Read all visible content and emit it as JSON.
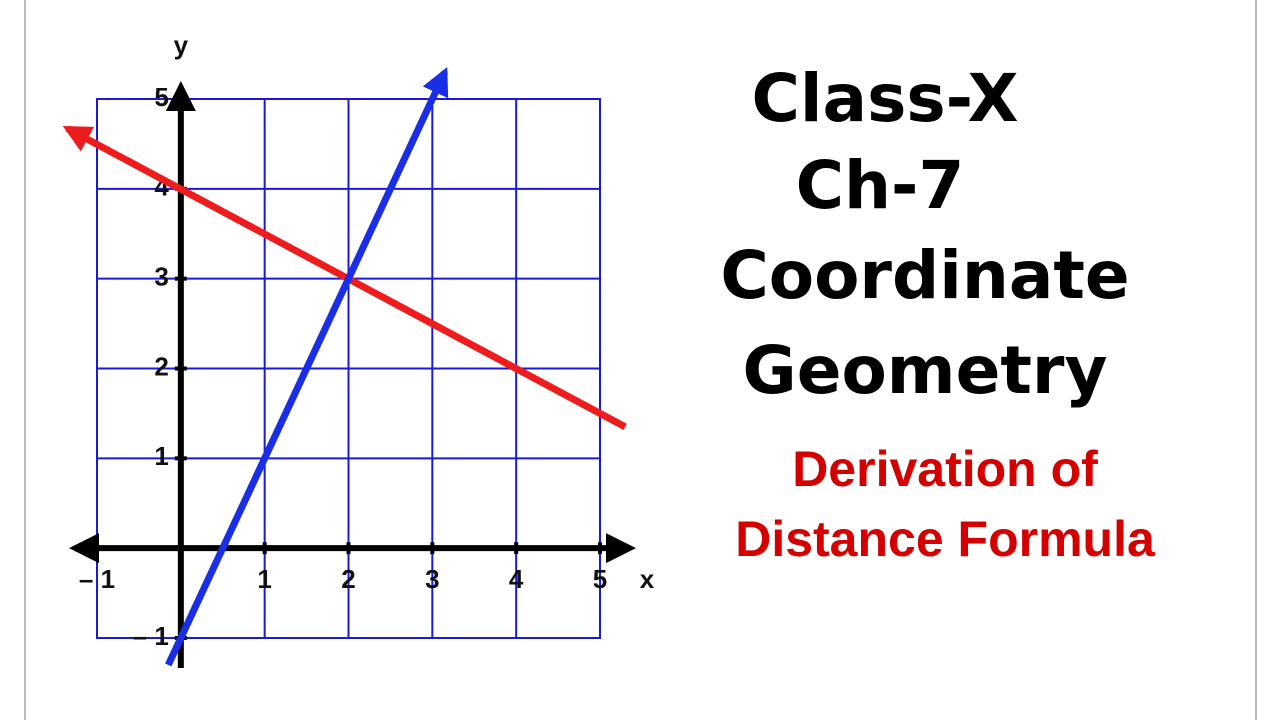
{
  "chart_data": {
    "type": "line",
    "xlabel": "x",
    "ylabel": "y",
    "xlim": [
      -1,
      5
    ],
    "ylim": [
      -1,
      5
    ],
    "xticks": [
      {
        "value": -1,
        "label": "– 1"
      },
      1,
      2,
      3,
      4,
      5
    ],
    "yticks": [
      {
        "value": -1,
        "label": "– 1"
      },
      1,
      2,
      3,
      4,
      5
    ],
    "grid": true,
    "grid_color": "#1a1ad6",
    "series": [
      {
        "color": "#ee1c1c",
        "x": [
          -1.35,
          5.3
        ],
        "values": [
          4.67,
          1.35
        ]
      },
      {
        "color": "#1a2ee8",
        "x": [
          -0.15,
          3.15
        ],
        "values": [
          -1.3,
          5.3
        ]
      }
    ]
  },
  "heading": [
    "Class-X",
    "Ch-7",
    "Coordinate",
    "Geometry"
  ],
  "subheading": [
    "Derivation of",
    "Distance Formula"
  ]
}
